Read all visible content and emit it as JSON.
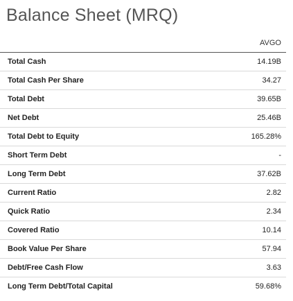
{
  "title": "Balance Sheet (MRQ)",
  "table": {
    "column_header": "AVGO",
    "rows": [
      {
        "label": "Total Cash",
        "value": "14.19B"
      },
      {
        "label": "Total Cash Per Share",
        "value": "34.27"
      },
      {
        "label": "Total Debt",
        "value": "39.65B"
      },
      {
        "label": "Net Debt",
        "value": "25.46B"
      },
      {
        "label": "Total Debt to Equity",
        "value": "165.28%"
      },
      {
        "label": "Short Term Debt",
        "value": "-"
      },
      {
        "label": "Long Term Debt",
        "value": "37.62B"
      },
      {
        "label": "Current Ratio",
        "value": "2.82"
      },
      {
        "label": "Quick Ratio",
        "value": "2.34"
      },
      {
        "label": "Covered Ratio",
        "value": "10.14"
      },
      {
        "label": "Book Value Per Share",
        "value": "57.94"
      },
      {
        "label": "Debt/Free Cash Flow",
        "value": "3.63"
      },
      {
        "label": "Long Term Debt/Total Capital",
        "value": "59.68%"
      }
    ]
  }
}
